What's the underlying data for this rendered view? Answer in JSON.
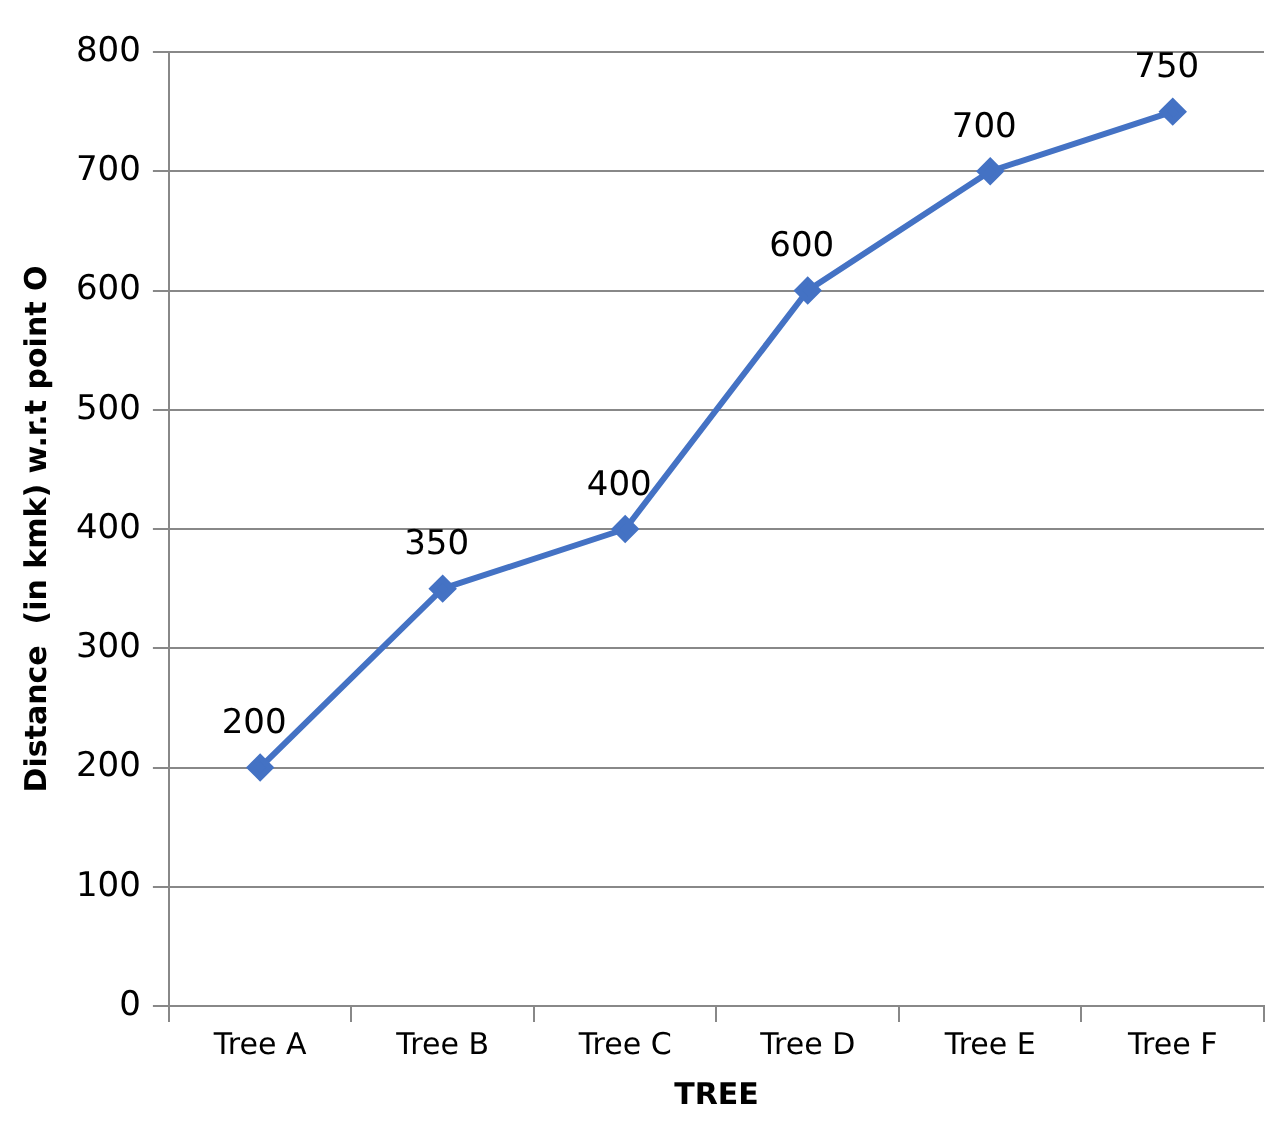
{
  "chart_data": {
    "type": "line",
    "xlabel": "TREE",
    "ylabel": "Distance  (in kmk) w.r.t point O",
    "categories": [
      "Tree A",
      "Tree B",
      "Tree C",
      "Tree D",
      "Tree E",
      "Tree F"
    ],
    "series": [
      {
        "color": "#4472c4",
        "values": [
          200,
          350,
          400,
          600,
          700,
          750
        ]
      }
    ],
    "ylim": [
      0,
      800
    ],
    "yticks": [
      0,
      100,
      200,
      300,
      400,
      500,
      600,
      700,
      800
    ],
    "grid": "y",
    "marker": "diamond",
    "data_labels": true
  }
}
